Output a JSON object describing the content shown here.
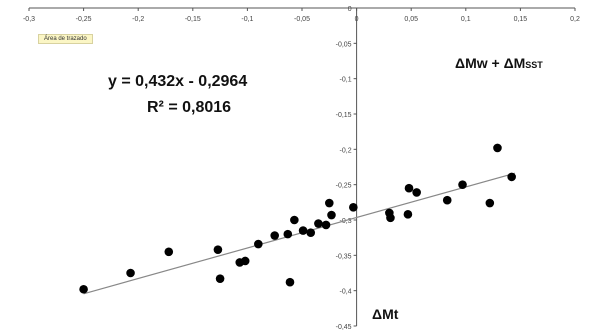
{
  "chart_data": {
    "type": "scatter",
    "xlim": [
      -0.3,
      0.2
    ],
    "ylim": [
      -0.45,
      0
    ],
    "x_ticks": [
      "-0,3",
      "-0,25",
      "-0,2",
      "-0,15",
      "-0,1",
      "-0,05",
      "0",
      "0,05",
      "0,1",
      "0,15",
      "0,2"
    ],
    "y_ticks": [
      "0",
      "-0,05",
      "-0,1",
      "-0,15",
      "-0,2",
      "-0,25",
      "-0,3",
      "-0,35",
      "-0,4",
      "-0,45"
    ],
    "grid": false,
    "points": [
      {
        "x": -0.25,
        "y": -0.398
      },
      {
        "x": -0.207,
        "y": -0.375
      },
      {
        "x": -0.172,
        "y": -0.345
      },
      {
        "x": -0.127,
        "y": -0.342
      },
      {
        "x": -0.125,
        "y": -0.383
      },
      {
        "x": -0.107,
        "y": -0.36
      },
      {
        "x": -0.102,
        "y": -0.358
      },
      {
        "x": -0.09,
        "y": -0.334
      },
      {
        "x": -0.075,
        "y": -0.322
      },
      {
        "x": -0.063,
        "y": -0.32
      },
      {
        "x": -0.061,
        "y": -0.388
      },
      {
        "x": -0.057,
        "y": -0.3
      },
      {
        "x": -0.049,
        "y": -0.315
      },
      {
        "x": -0.042,
        "y": -0.318
      },
      {
        "x": -0.035,
        "y": -0.305
      },
      {
        "x": -0.028,
        "y": -0.307
      },
      {
        "x": -0.025,
        "y": -0.276
      },
      {
        "x": -0.023,
        "y": -0.293
      },
      {
        "x": -0.003,
        "y": -0.282
      },
      {
        "x": 0.03,
        "y": -0.29
      },
      {
        "x": 0.031,
        "y": -0.297
      },
      {
        "x": 0.047,
        "y": -0.292
      },
      {
        "x": 0.048,
        "y": -0.255
      },
      {
        "x": 0.055,
        "y": -0.261
      },
      {
        "x": 0.083,
        "y": -0.272
      },
      {
        "x": 0.097,
        "y": -0.25
      },
      {
        "x": 0.122,
        "y": -0.276
      },
      {
        "x": 0.129,
        "y": -0.198
      },
      {
        "x": 0.142,
        "y": -0.239
      }
    ],
    "trendline": {
      "slope": 0.432,
      "intercept": -0.2964,
      "x_range": [
        -0.25,
        0.145
      ]
    },
    "equation_label": "y = 0,432x - 0,2964",
    "r2_label": "R² = 0,8016",
    "ylabel_main": "ΔMw + ΔM",
    "ylabel_sub": "SST",
    "xlabel": "ΔMt",
    "colors": {
      "points": "#000000",
      "trendline": "#888888",
      "axis": "#555555"
    }
  },
  "tooltip": {
    "text": "Área de trazado"
  }
}
